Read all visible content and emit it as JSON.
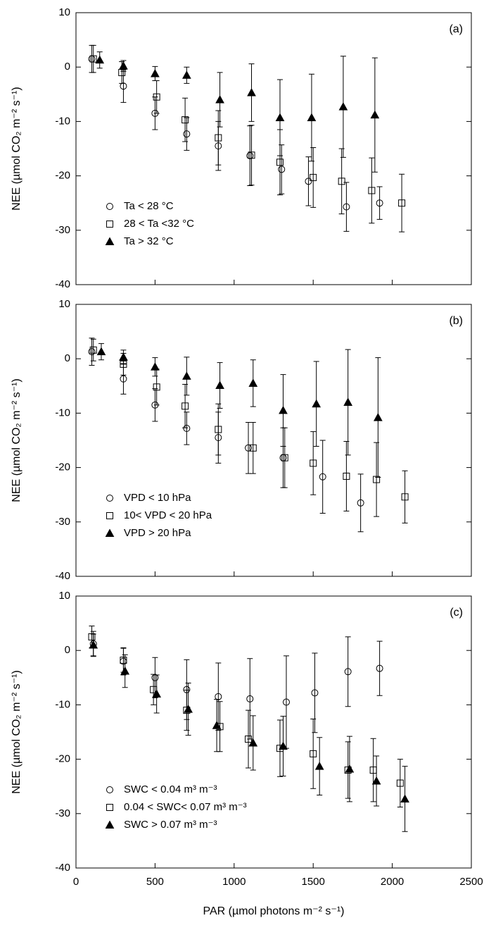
{
  "chart_data": [
    {
      "type": "scatter",
      "panel_label": "(a)",
      "y_label": "NEE (µmol CO₂ m⁻² s⁻¹)",
      "xlim": [
        0,
        2500
      ],
      "xticks": [
        0,
        500,
        1000,
        1500,
        2000,
        2500
      ],
      "ylim": [
        -40,
        10
      ],
      "yticks": [
        -40,
        -30,
        -20,
        -10,
        0,
        10
      ],
      "legend": "lower left",
      "series": [
        {
          "name": "Ta < 28 °C",
          "marker": "circle",
          "color": "#000000",
          "x": [
            100,
            300,
            500,
            700,
            900,
            1100,
            1300,
            1470,
            1710,
            1920
          ],
          "values": [
            1.5,
            -3.5,
            -8.5,
            -12.3,
            -14.5,
            -16.3,
            -18.8,
            -21,
            -25.7,
            -25
          ],
          "errors": [
            2.5,
            3,
            3,
            3,
            4.5,
            5.5,
            4.5,
            4.5,
            4.5,
            3
          ]
        },
        {
          "name": "28 < Ta <32 °C",
          "marker": "square",
          "color": "#000000",
          "x": [
            110,
            290,
            510,
            690,
            900,
            1110,
            1290,
            1500,
            1680,
            1870,
            2060
          ],
          "values": [
            1.5,
            -1,
            -5.5,
            -9.7,
            -13,
            -16.2,
            -17.5,
            -20.3,
            -21,
            -22.7,
            -25
          ],
          "errors": [
            2.5,
            2,
            3,
            4,
            5,
            5.5,
            6,
            5.5,
            6,
            6,
            5.3
          ]
        },
        {
          "name": "Ta > 32 °C",
          "marker": "triangle",
          "color": "#000000",
          "x": [
            150,
            300,
            500,
            700,
            910,
            1110,
            1290,
            1490,
            1690,
            1890
          ],
          "values": [
            1.3,
            0.2,
            -1.2,
            -1.5,
            -6,
            -4.7,
            -9.3,
            -9.3,
            -7.3,
            -8.8
          ],
          "errors": [
            1.5,
            1,
            1.3,
            1.5,
            5,
            5.3,
            7,
            8,
            9.3,
            10.5
          ]
        }
      ]
    },
    {
      "type": "scatter",
      "panel_label": "(b)",
      "y_label": "NEE (µmol CO₂ m⁻² s⁻¹)",
      "xlim": [
        0,
        2500
      ],
      "xticks": [
        0,
        500,
        1000,
        1500,
        2000,
        2500
      ],
      "ylim": [
        -40,
        10
      ],
      "yticks": [
        -40,
        -30,
        -20,
        -10,
        0,
        10
      ],
      "legend": "lower left",
      "series": [
        {
          "name": "VPD < 10 hPa",
          "marker": "circle",
          "color": "#000000",
          "x": [
            100,
            300,
            500,
            700,
            900,
            1090,
            1310,
            1560,
            1800
          ],
          "values": [
            1.3,
            -3.7,
            -8.5,
            -12.8,
            -14.5,
            -16.4,
            -18.2,
            -21.7,
            -26.5
          ],
          "errors": [
            2.5,
            2.8,
            3,
            3,
            4.7,
            4.7,
            5.5,
            6.7,
            5.3
          ]
        },
        {
          "name": "10< VPD < 20 hPa",
          "marker": "square",
          "color": "#000000",
          "x": [
            110,
            300,
            510,
            690,
            900,
            1120,
            1320,
            1500,
            1710,
            1900,
            2080
          ],
          "values": [
            1.6,
            -1,
            -5.2,
            -8.7,
            -13,
            -16.4,
            -18.2,
            -19.2,
            -21.6,
            -22.2,
            -25.4
          ],
          "errors": [
            2,
            2,
            3.3,
            4,
            4.7,
            4.7,
            5.5,
            5.8,
            6.4,
            6.8,
            4.8
          ]
        },
        {
          "name": "VPD > 20 hPa",
          "marker": "triangle",
          "color": "#000000",
          "x": [
            160,
            300,
            500,
            700,
            910,
            1120,
            1310,
            1520,
            1720,
            1910
          ],
          "values": [
            1.3,
            0.3,
            -1.5,
            -3.2,
            -4.9,
            -4.5,
            -9.5,
            -8.3,
            -8,
            -10.8
          ],
          "errors": [
            1.5,
            1.3,
            1.7,
            3.5,
            4.2,
            4.3,
            6.6,
            7.8,
            9.7,
            11
          ]
        }
      ]
    },
    {
      "type": "scatter",
      "panel_label": "(c)",
      "y_label": "NEE (µmol CO₂ m⁻² s⁻¹)",
      "x_label": "PAR (µmol photons m⁻² s⁻¹)",
      "xlim": [
        0,
        2500
      ],
      "xticks": [
        0,
        500,
        1000,
        1500,
        2000,
        2500
      ],
      "ylim": [
        -40,
        10
      ],
      "yticks": [
        -40,
        -30,
        -20,
        -10,
        0,
        10
      ],
      "legend": "lower left",
      "series": [
        {
          "name": "SWC  < 0.04 m³ m⁻³",
          "marker": "circle",
          "color": "#000000",
          "x": [
            110,
            300,
            500,
            700,
            900,
            1100,
            1330,
            1510,
            1720,
            1920
          ],
          "values": [
            1.2,
            -2,
            -5,
            -7.2,
            -8.5,
            -8.9,
            -9.5,
            -7.8,
            -3.9,
            -3.3
          ],
          "errors": [
            2.3,
            2.5,
            3.7,
            5.5,
            6.2,
            7.4,
            8.5,
            7.3,
            6.4,
            5
          ]
        },
        {
          "name": "0.04 < SWC< 0.07 m³ m⁻³",
          "marker": "square",
          "color": "#000000",
          "x": [
            100,
            300,
            490,
            700,
            910,
            1090,
            1290,
            1500,
            1720,
            1880,
            2050
          ],
          "values": [
            2.5,
            -1.8,
            -7.2,
            -11,
            -14,
            -16.3,
            -18,
            -19,
            -22,
            -22,
            -24.4
          ],
          "errors": [
            2,
            2.2,
            2.8,
            3.7,
            4.6,
            5.3,
            5.2,
            6.4,
            5.2,
            5.8,
            4.4
          ]
        },
        {
          "name": "SWC > 0.07 m³ m⁻³",
          "marker": "triangle",
          "color": "#000000",
          "x": [
            110,
            310,
            510,
            710,
            890,
            1120,
            1310,
            1540,
            1730,
            1900,
            2080
          ],
          "values": [
            1,
            -3.8,
            -8,
            -10.8,
            -13.8,
            -17,
            -17.6,
            -21.3,
            -21.8,
            -24,
            -27.3
          ],
          "errors": [
            2,
            3,
            3.5,
            4.8,
            4.8,
            5,
            5.5,
            5.3,
            6,
            4.6,
            6
          ]
        }
      ]
    }
  ]
}
